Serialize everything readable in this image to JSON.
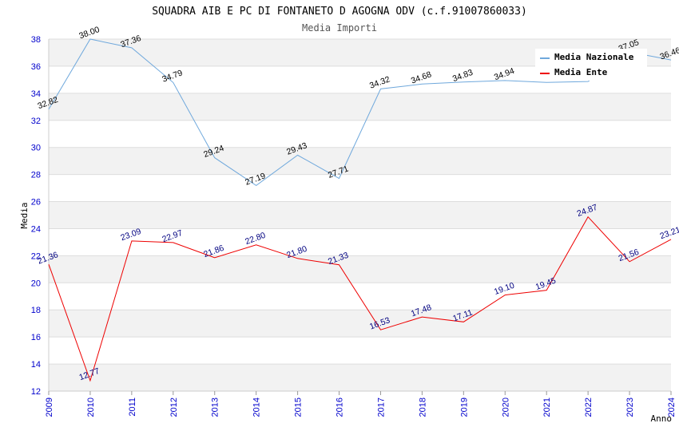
{
  "chart_data": {
    "type": "line",
    "title": "SQUADRA AIB E PC DI FONTANETO D AGOGNA ODV (c.f.91007860033)",
    "subtitle": "Media Importi",
    "xlabel": "Anno",
    "ylabel": "Media",
    "ylim": [
      12,
      38
    ],
    "yticks": [
      12,
      14,
      16,
      18,
      20,
      22,
      24,
      26,
      28,
      30,
      32,
      34,
      36,
      38
    ],
    "x": [
      2009,
      2010,
      2011,
      2012,
      2013,
      2014,
      2015,
      2016,
      2017,
      2018,
      2019,
      2020,
      2021,
      2022,
      2023,
      2024
    ],
    "legend_position": "top-right",
    "series": [
      {
        "name": "Media Nazionale",
        "color": "#6fa8dc",
        "values": [
          32.82,
          38.0,
          37.36,
          34.79,
          29.24,
          27.19,
          29.43,
          27.71,
          34.32,
          34.68,
          34.83,
          34.94,
          34.8,
          34.87,
          37.05,
          36.46
        ],
        "labels": [
          "32.82",
          "38.00",
          "37.36",
          "34.79",
          "29.24",
          "27.19",
          "29.43",
          "27.71",
          "34.32",
          "34.68",
          "34.83",
          "34.94",
          "",
          "",
          "37.05",
          "36.46"
        ]
      },
      {
        "name": "Media Ente",
        "color": "#ee0000",
        "values": [
          21.36,
          12.77,
          23.09,
          22.97,
          21.86,
          22.8,
          21.8,
          21.33,
          16.53,
          17.48,
          17.11,
          19.1,
          19.45,
          24.87,
          21.56,
          23.21
        ],
        "labels": [
          "21.36",
          "12.77",
          "23.09",
          "22.97",
          "21.86",
          "22.80",
          "21.80",
          "21.33",
          "16.53",
          "17.48",
          "17.11",
          "19.10",
          "19.45",
          "24.87",
          "21.56",
          "23.21"
        ]
      }
    ]
  }
}
